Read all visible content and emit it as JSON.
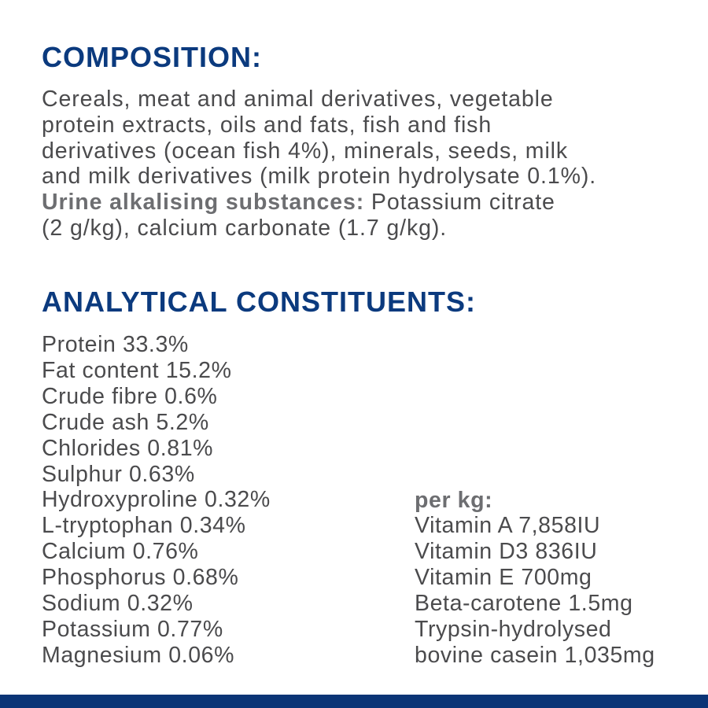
{
  "composition": {
    "title": "COMPOSITION:",
    "lines": [
      "Cereals, meat and animal derivatives, vegetable",
      "protein extracts, oils and fats, fish and fish",
      "derivatives (ocean fish 4%), minerals, seeds, milk",
      "and milk derivatives (milk protein hydrolysate 0.1%)."
    ],
    "additive_label": "Urine alkalising substances:",
    "additive_text": " Potassium citrate",
    "additive_text_2": "(2 g/kg), calcium carbonate (1.7 g/kg)."
  },
  "analytical": {
    "title": "ANALYTICAL CONSTITUENTS:",
    "items": [
      "Protein 33.3%",
      "Fat content 15.2%",
      "Crude fibre 0.6%",
      "Crude ash 5.2%",
      "Chlorides 0.81%",
      "Sulphur 0.63%",
      "Hydroxyproline 0.32%",
      "L-tryptophan 0.34%",
      "Calcium 0.76%",
      "Phosphorus 0.68%",
      "Sodium 0.32%",
      "Potassium 0.77%",
      "Magnesium 0.06%"
    ],
    "per_kg_label": "per kg:",
    "per_kg_items": [
      "Vitamin A 7,858IU",
      "Vitamin D3 836IU",
      "Vitamin E 700mg",
      "Beta-carotene 1.5mg",
      "Trypsin-hydrolysed",
      "bovine casein 1,035mg"
    ]
  },
  "colors": {
    "heading": "#0b3a7e",
    "text": "#4b4b4d",
    "bar": "#0a3476"
  }
}
